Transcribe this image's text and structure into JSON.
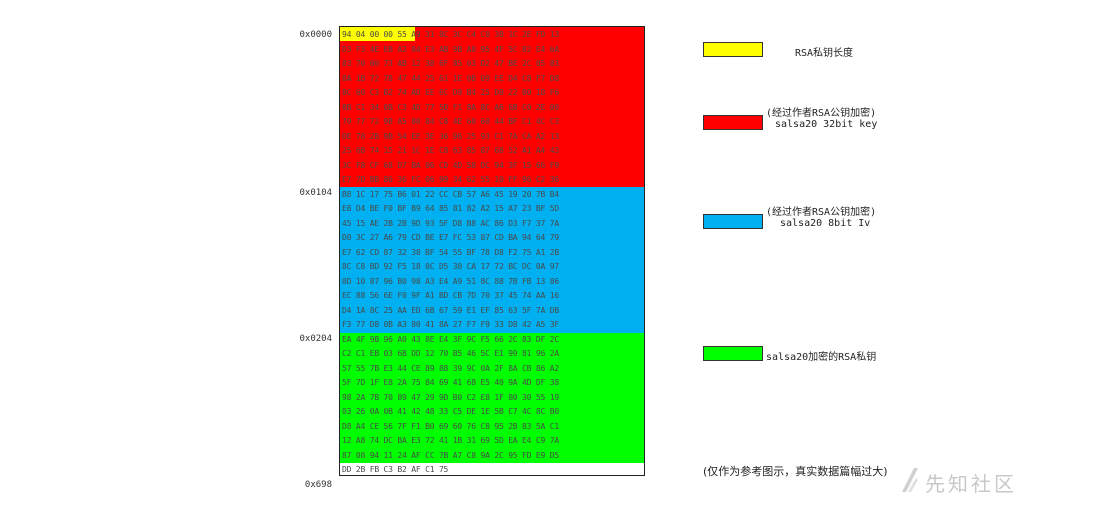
{
  "offsets": [
    "0x0000",
    "0x0104",
    "0x0204",
    "0x698"
  ],
  "colors": {
    "rsa_length": "#ffff00",
    "key_region": "#ff0000",
    "iv_region": "#00b0f0",
    "rsa_region": "#00ff00"
  },
  "hex_rows": [
    "94 04 00 00 55 A9 31 8C 3C C4 C0 38 1C 2E FD 13",
    "D3 F3 4E EB A2 04 E3 AB 9B A8 95 4F 5C 82 E4 6A",
    "83 70 00 73 AB 12 38 6F 85 03 D2 47 BE 2C 05 83",
    "8A 1B 72 78 47 44 25 61 1E 0B 09 EE D4 C8 F7 D8",
    "8C 60 C3 B2 74 AD EE 6C D9 B4 25 D8 22 00 18 F6",
    "8B C1 34 0B C3 4D 77 5D F1 8A 8C A6 6B C0 2E 00",
    "70 77 72 98 A5 80 84 C8 4E 60 60 44 BF C1 4C C3",
    "DE 78 2B 9B 54 EE 3E 36 96 25 93 C1 7A CA A2 13",
    "25 6B 74 15 21 1C 1E C8 63 85 87 68 52 A1 A4 43",
    "3C F8 CF 68 D7 BA 06 CD 4D 58 DC 94 3F 15 66 F9",
    "E7 7D BB 86 36 FC 06 99 34 62 55 10 FF 96 C2 36",
    "B8 1C 17 75 B6 01 22 CC CB 57 A6 45 19 20 7B B4",
    "E8 D4 BE F0 BF B9 64 85 81 82 A2 15 A7 23 BF 5D",
    "45 15 AE 2B 2B 9D 93 5F D8 B8 AC 86 D3 F7 37 7A",
    "D0 3C 27 A6 79 CD BE E7 FC 53 87 CD BA 94 64 79",
    "E7 62 CD 87 32 38 BF 54 55 BF 78 D8 F2 75 A1 2B",
    "8C C8 BD 92 F5 18 0C D5 30 CA 17 72 BC DC 0A 97",
    "0D 10 87 96 B0 98 A3 E4 A9 51 8C 88 7B FB 13 86",
    "EC 88 56 6E F0 9F A1 BD CB 7D 70 37 45 74 AA 16",
    "D4 1A 8C 25 AA ED 6B 67 59 E1 EF 85 63 5F 7A DB",
    "F3 77 D8 0B A3 80 41 8A 27 F7 F9 33 D8 42 A5 3F",
    "EA 4F 9B 96 A0 43 8E E4 3F 9C F5 66 2C 83 DF 2C",
    "C2 C1 EB 03 6B DD 12 70 B5 46 5C E1 99 81 96 2A",
    "57 55 7B E3 44 CE 89 88 39 9C 0A 2F 8A CB 86 A2",
    "5F 7D 1F E8 2A 75 84 69 41 68 E5 40 9A 4D DF 38",
    "98 2A 7B 70 89 47 29 9D B0 C2 E8 1F 80 30 55 19",
    "03 26 0A 0B 41 42 48 33 C5 DE 1E 5B C7 4C 8C B0",
    "D8 A4 CE 56 7F F1 B0 69 60 76 C8 95 2B 83 5A C1",
    "12 A8 74 DC BA E3 72 41 1B 31 69 5D EA E4 C9 7A",
    "87 08 94 11 24 AF CC 7B A7 C8 9A 2C 95 FD E9 D5",
    "DD 2B FB C3 B2 AF C1 75"
  ],
  "legend": [
    {
      "label": "RSA私钥长度"
    },
    {
      "label": "(经过作者RSA公钥加密)",
      "sublabel": "salsa20 32bit key"
    },
    {
      "label": "(经过作者RSA公钥加密)",
      "sublabel": "salsa20 8bit Iv"
    },
    {
      "label": "salsa20加密的RSA私钥"
    }
  ],
  "note": "(仅作为参考图示，真实数据篇幅过大)",
  "watermark": "先知社区"
}
